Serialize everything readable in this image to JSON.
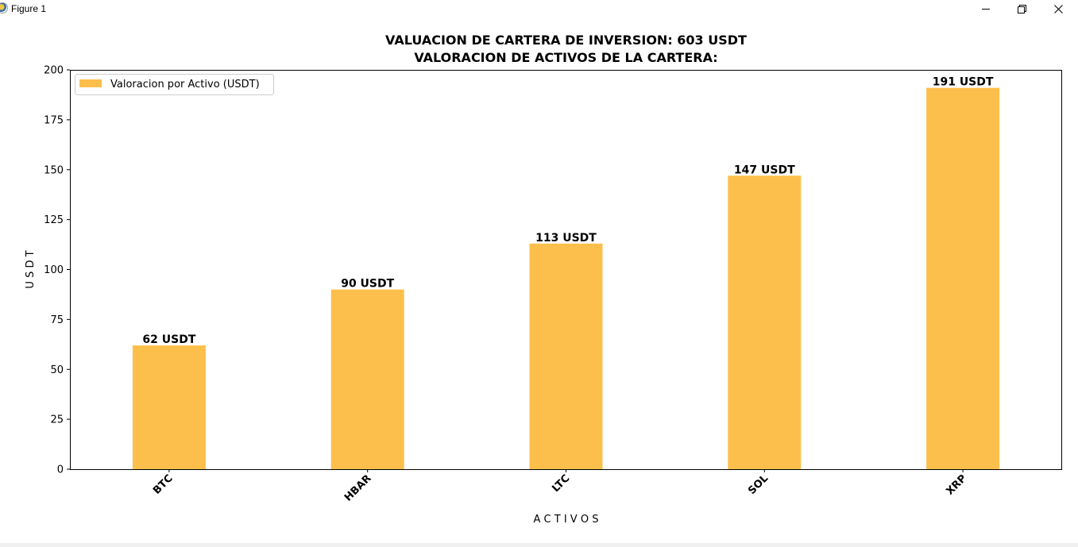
{
  "window": {
    "title": "Figure 1"
  },
  "chart_data": {
    "type": "bar",
    "title": "VALUACION DE CARTERA DE INVERSION: 603 USDT",
    "subtitle": "VALORACION DE ACTIVOS DE LA CARTERA:",
    "xlabel": "A C T I V O S",
    "ylabel": "U S D T",
    "categories": [
      "BTC",
      "HBAR",
      "LTC",
      "SOL",
      "XRP"
    ],
    "series": [
      {
        "name": "Valoracion por Activo (USDT)",
        "values": [
          62,
          90,
          113,
          147,
          191
        ],
        "labels": [
          "62 USDT",
          "90 USDT",
          "113 USDT",
          "147 USDT",
          "191 USDT"
        ],
        "color": "#fdbf4c"
      }
    ],
    "ylim": [
      0,
      200
    ],
    "yticks": [
      0,
      25,
      50,
      75,
      100,
      125,
      150,
      175,
      200
    ],
    "grid": false,
    "legend_position": "top-left"
  }
}
